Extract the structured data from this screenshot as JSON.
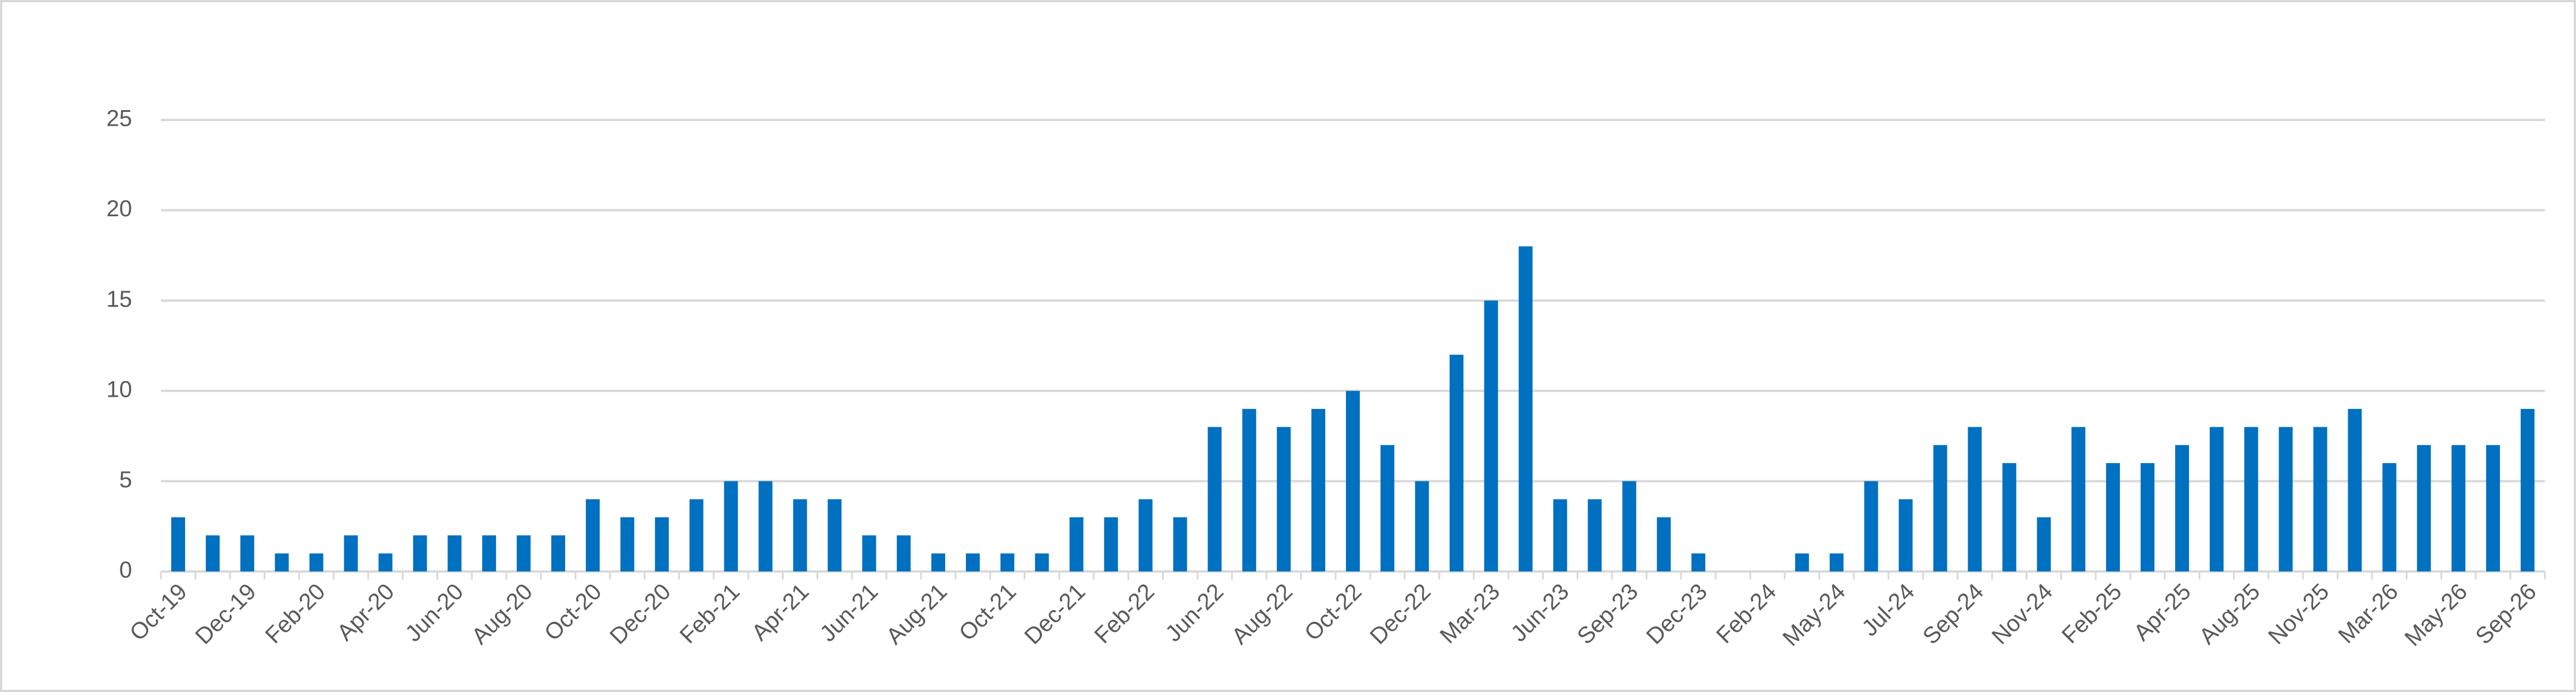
{
  "chart_data": {
    "type": "bar",
    "categories": [
      "Oct-19",
      null,
      "Dec-19",
      null,
      "Feb-20",
      null,
      "Apr-20",
      null,
      "Jun-20",
      null,
      "Aug-20",
      null,
      "Oct-20",
      null,
      "Dec-20",
      null,
      "Feb-21",
      null,
      "Apr-21",
      null,
      "Jun-21",
      null,
      "Aug-21",
      null,
      "Oct-21",
      null,
      "Dec-21",
      null,
      "Feb-22",
      null,
      "Jun-22",
      null,
      "Aug-22",
      null,
      "Oct-22",
      null,
      "Dec-22",
      null,
      "Mar-23",
      null,
      "Jun-23",
      null,
      "Sep-23",
      null,
      "Dec-23",
      null,
      "Feb-24",
      null,
      "May-24",
      null,
      "Jul-24",
      null,
      "Sep-24",
      null,
      "Nov-24",
      null,
      "Feb-25",
      null,
      "Apr-25",
      null,
      "Aug-25",
      null,
      "Nov-25",
      null,
      "Mar-26",
      null,
      "May-26",
      null,
      "Sep-26"
    ],
    "values": [
      3,
      2,
      2,
      1,
      1,
      2,
      1,
      2,
      2,
      2,
      2,
      2,
      4,
      3,
      3,
      4,
      5,
      5,
      4,
      4,
      2,
      2,
      1,
      1,
      1,
      1,
      3,
      3,
      4,
      3,
      8,
      9,
      8,
      9,
      10,
      7,
      5,
      12,
      15,
      18,
      4,
      4,
      5,
      3,
      1,
      0,
      0,
      1,
      1,
      5,
      4,
      7,
      8,
      6,
      3,
      8,
      6,
      6,
      7,
      8,
      8,
      8,
      8,
      9,
      6,
      7,
      7,
      7,
      9
    ],
    "color": "#0070c0",
    "ylim": [
      0,
      25
    ],
    "yticks": [
      0,
      5,
      10,
      15,
      20,
      25
    ],
    "grid": true
  }
}
